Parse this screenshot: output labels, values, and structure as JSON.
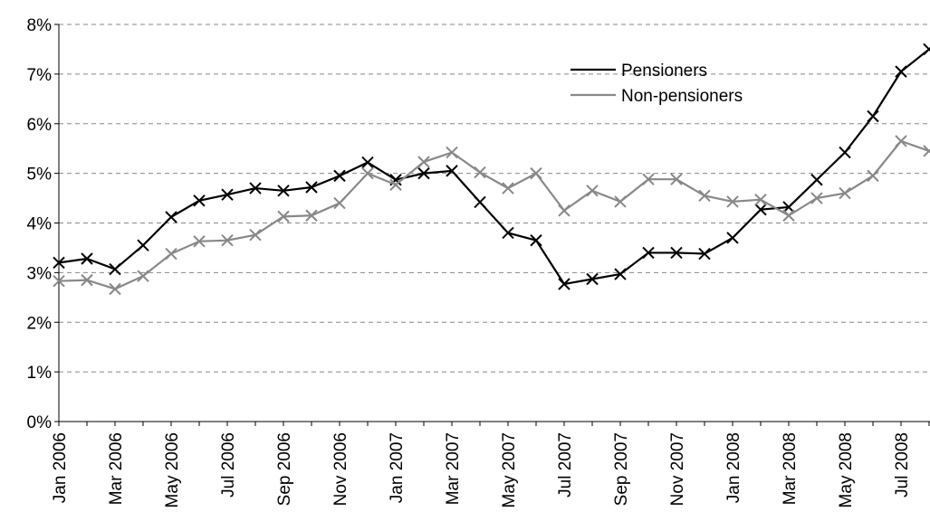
{
  "chart_data": {
    "type": "line",
    "categories": [
      "Jan 2006",
      null,
      "Mar 2006",
      null,
      "May 2006",
      null,
      "Jul 2006",
      null,
      "Sep 2006",
      null,
      "Nov 2006",
      null,
      "Jan 2007",
      null,
      "Mar 2007",
      null,
      "May 2007",
      null,
      "Jul 2007",
      null,
      "Sep 2007",
      null,
      "Nov 2007",
      null,
      "Jan 2008",
      null,
      "Mar 2008",
      null,
      "May 2008",
      null,
      "Jul 2008",
      null
    ],
    "series": [
      {
        "name": "Pensioners",
        "color": "#000000",
        "values": [
          3.2,
          3.28,
          3.07,
          3.55,
          4.12,
          4.45,
          4.57,
          4.7,
          4.65,
          4.72,
          4.95,
          5.22,
          4.87,
          5.0,
          5.05,
          4.42,
          3.8,
          3.65,
          2.77,
          2.87,
          2.97,
          3.4,
          3.4,
          3.38,
          3.7,
          4.27,
          4.32,
          4.87,
          5.42,
          6.15,
          7.05,
          7.5
        ]
      },
      {
        "name": "Non-pensioners",
        "color": "#888888",
        "values": [
          2.83,
          2.85,
          2.67,
          2.93,
          3.38,
          3.63,
          3.65,
          3.76,
          4.13,
          4.15,
          4.4,
          5.0,
          4.77,
          5.23,
          5.42,
          5.02,
          4.7,
          5.0,
          4.25,
          4.65,
          4.43,
          4.88,
          4.88,
          4.55,
          4.43,
          4.47,
          4.15,
          4.5,
          4.6,
          4.95,
          5.65,
          5.45
        ]
      }
    ],
    "ylim": [
      0,
      8
    ],
    "yticks": [
      {
        "value": 0,
        "label": "0%"
      },
      {
        "value": 1,
        "label": "1%"
      },
      {
        "value": 2,
        "label": "2%"
      },
      {
        "value": 3,
        "label": "3%"
      },
      {
        "value": 4,
        "label": "4%"
      },
      {
        "value": 5,
        "label": "5%"
      },
      {
        "value": 6,
        "label": "6%"
      },
      {
        "value": 7,
        "label": "7%"
      },
      {
        "value": 8,
        "label": "8%"
      }
    ],
    "grid": true,
    "legend": "upper right"
  }
}
